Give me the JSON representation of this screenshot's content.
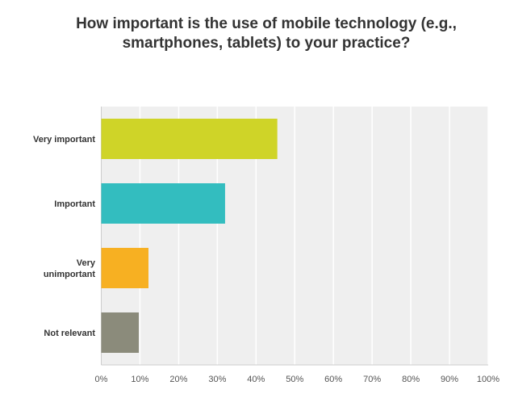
{
  "chart_data": {
    "type": "bar",
    "orientation": "horizontal",
    "title": "How important is the use of mobile technology (e.g., smartphones, tablets) to your practice?",
    "categories": [
      "Very important",
      "Important",
      "Very unimportant",
      "Not relevant"
    ],
    "values": [
      45.5,
      32.0,
      12.2,
      9.7
    ],
    "colors": [
      "#cfd428",
      "#33bdbf",
      "#f7b022",
      "#8b8b7b"
    ],
    "xlabel": "",
    "ylabel": "",
    "xlim": [
      0,
      100
    ],
    "x_ticks": [
      "0%",
      "10%",
      "20%",
      "30%",
      "40%",
      "50%",
      "60%",
      "70%",
      "80%",
      "90%",
      "100%"
    ],
    "grid": true,
    "legend": "none"
  }
}
